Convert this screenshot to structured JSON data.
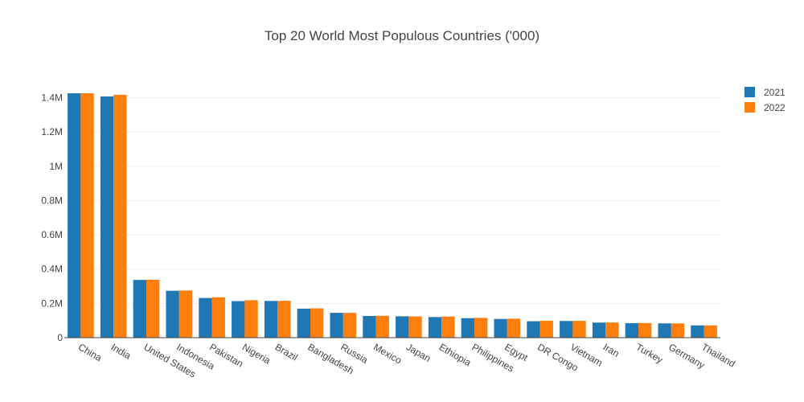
{
  "chart_data": {
    "type": "bar",
    "title": "Top 20 World Most Populous Countries ('000)",
    "xlabel": "",
    "ylabel": "",
    "categories": [
      "China",
      "India",
      "United States",
      "Indonesia",
      "Pakistan",
      "Nigeria",
      "Brazil",
      "Bangladesh",
      "Russia",
      "Mexico",
      "Japan",
      "Ethiopia",
      "Philippines",
      "Egypt",
      "DR Congo",
      "Vietnam",
      "Iran",
      "Turkey",
      "Germany",
      "Thailand"
    ],
    "series": [
      {
        "name": "2021",
        "color": "#1f77b4",
        "values": [
          1425893,
          1407563,
          336998,
          273753,
          231402,
          213401,
          214326,
          169356,
          145103,
          126705,
          124613,
          120283,
          113880,
          109262,
          95894,
          97468,
          87923,
          84775,
          83409,
          71601
        ]
      },
      {
        "name": "2022",
        "color": "#ff7f0e",
        "values": [
          1425887,
          1417173,
          338290,
          275501,
          235825,
          218541,
          215313,
          171186,
          144713,
          127504,
          123952,
          123380,
          115559,
          110990,
          99010,
          98187,
          88551,
          85341,
          83370,
          71697
        ]
      }
    ],
    "ylim": [
      0,
      1501000
    ],
    "yticks": [
      {
        "value": 0,
        "label": "0"
      },
      {
        "value": 200000,
        "label": "0.2M"
      },
      {
        "value": 400000,
        "label": "0.4M"
      },
      {
        "value": 600000,
        "label": "0.6M"
      },
      {
        "value": 800000,
        "label": "0.8M"
      },
      {
        "value": 1000000,
        "label": "1M"
      },
      {
        "value": 1200000,
        "label": "1.2M"
      },
      {
        "value": 1400000,
        "label": "1.4M"
      }
    ],
    "grid": true,
    "legend_position": "top-right"
  }
}
